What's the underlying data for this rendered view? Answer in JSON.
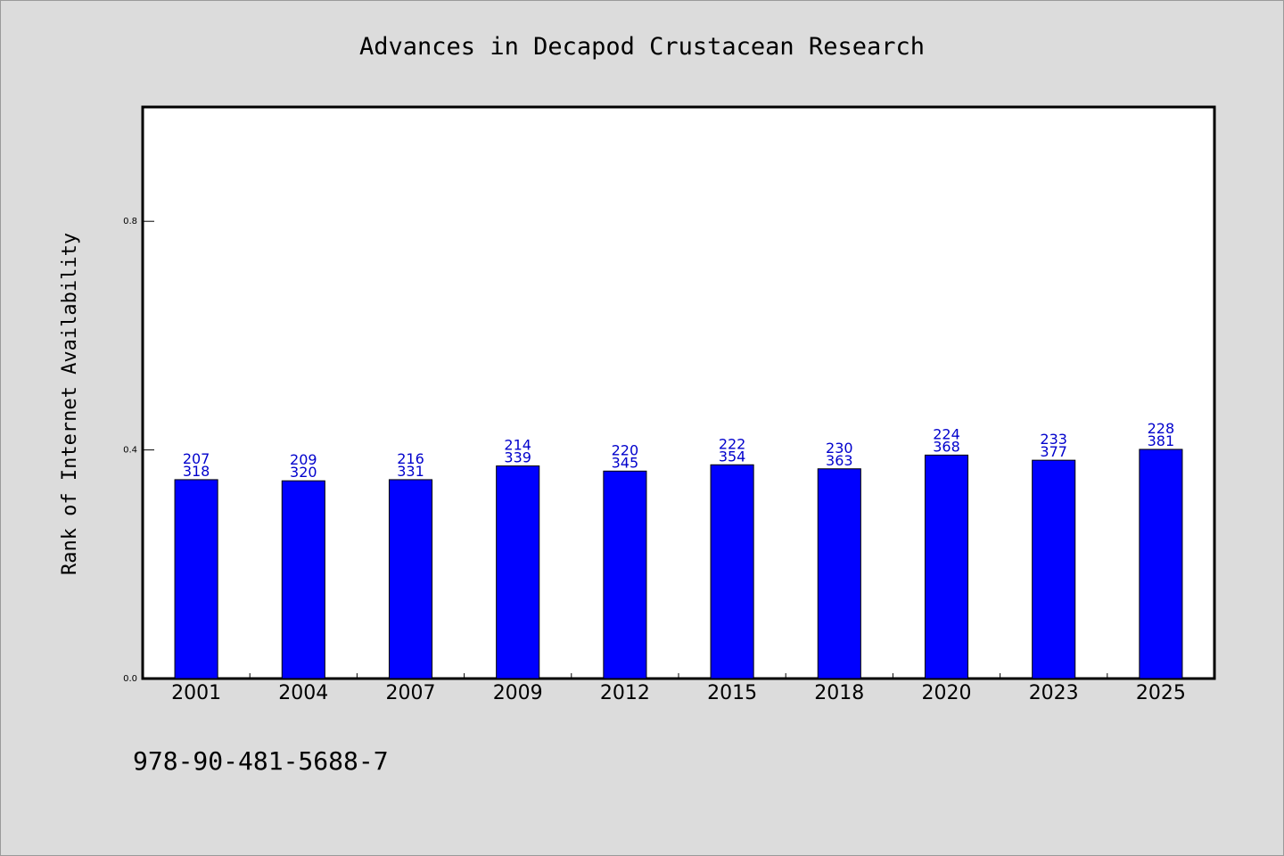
{
  "colors": {
    "page_background": "#dcdcdc",
    "plot_background": "#ffffff",
    "bar_fill": "#0000ff",
    "bar_stroke": "#000000",
    "data_label": "#0000cc",
    "axis": "#000000"
  },
  "footer": {
    "isbn": "978-90-481-5688-7"
  },
  "chart_data": {
    "type": "bar",
    "title": "Advances in Decapod Crustacean Research",
    "xlabel": "",
    "ylabel": "Rank of Internet Availability",
    "ylim": [
      0.0,
      1.0
    ],
    "yticks": [
      0.0,
      0.4,
      0.8
    ],
    "ytick_labels": [
      "0.0",
      "0.4",
      "0.8"
    ],
    "grid": false,
    "legend": "none",
    "categories": [
      "2001",
      "2004",
      "2007",
      "2009",
      "2012",
      "2015",
      "2018",
      "2020",
      "2023",
      "2025"
    ],
    "values": [
      0.348,
      0.346,
      0.348,
      0.372,
      0.363,
      0.374,
      0.367,
      0.391,
      0.382,
      0.401
    ],
    "label_top": [
      "207",
      "209",
      "216",
      "214",
      "220",
      "222",
      "230",
      "224",
      "233",
      "228"
    ],
    "label_bottom": [
      "318",
      "320",
      "331",
      "339",
      "345",
      "354",
      "363",
      "368",
      "377",
      "381"
    ]
  }
}
